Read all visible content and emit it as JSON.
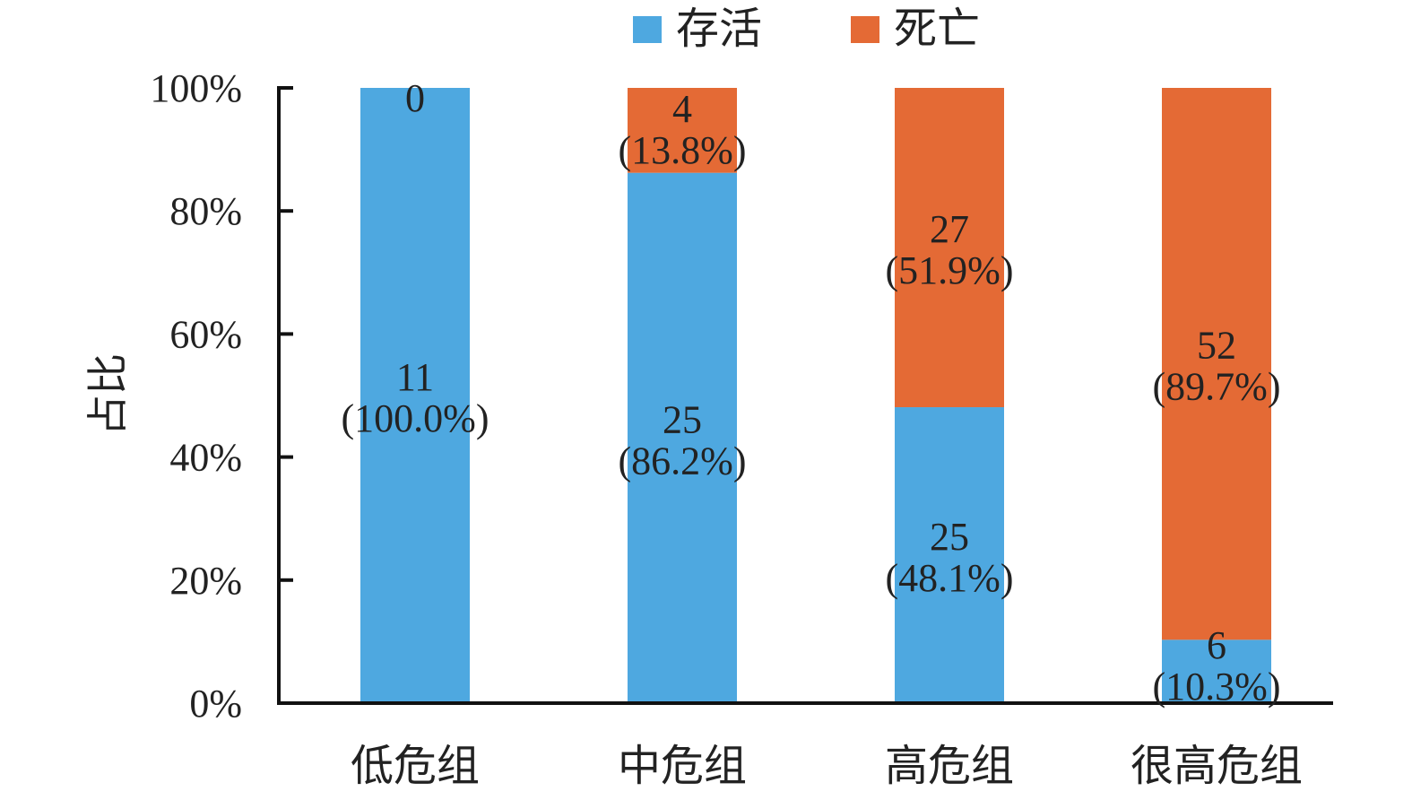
{
  "chart_data": {
    "type": "bar",
    "stacked": true,
    "normalized": true,
    "title": "",
    "xlabel": "",
    "ylabel": "占比",
    "ylim": [
      0,
      100
    ],
    "yticks": [
      "0%",
      "20%",
      "40%",
      "60%",
      "80%",
      "100%"
    ],
    "categories": [
      "低危组",
      "中危组",
      "高危组",
      "很高危组"
    ],
    "legend": {
      "position": "top"
    },
    "series": [
      {
        "name": "存活",
        "color": "#4EA8E0",
        "counts": [
          11,
          25,
          25,
          6
        ],
        "values": [
          100.0,
          86.2,
          48.1,
          10.3
        ],
        "labels": [
          "(100.0%)",
          "(86.2%)",
          "(48.1%)",
          "(10.3%)"
        ]
      },
      {
        "name": "死亡",
        "color": "#E46A35",
        "counts": [
          0,
          4,
          27,
          52
        ],
        "values": [
          0.0,
          13.8,
          51.9,
          89.7
        ],
        "labels": [
          "",
          "(13.8%)",
          "(51.9%)",
          "(89.7%)"
        ]
      }
    ]
  }
}
